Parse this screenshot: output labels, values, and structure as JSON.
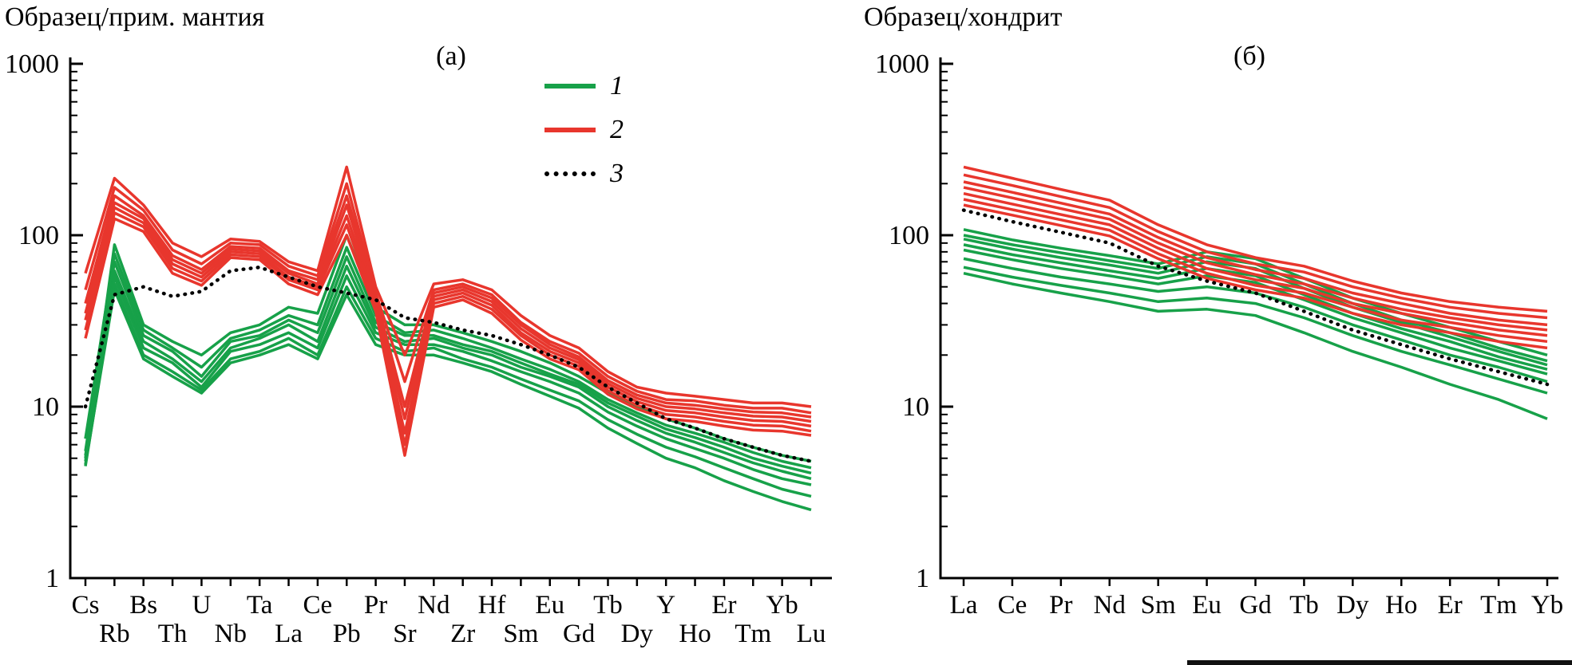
{
  "colors": {
    "series1": "#17a149",
    "series2": "#e8362d",
    "series3": "#000000"
  },
  "chart_data": [
    {
      "id": "panel-a",
      "type": "line",
      "panel_label": "(а)",
      "ylabel_title": "Образец/прим. мантия",
      "y_log": true,
      "ylim": [
        1,
        1000
      ],
      "y_ticks": [
        1,
        10,
        100,
        1000
      ],
      "grid": false,
      "legend_position": "upper-right-inside",
      "categories": [
        "Cs",
        "Rb",
        "Bs",
        "Th",
        "U",
        "Nb",
        "Ta",
        "La",
        "Ce",
        "Pb",
        "Pr",
        "Sr",
        "Nd",
        "Zr",
        "Hf",
        "Sm",
        "Eu",
        "Gd",
        "Tb",
        "Dy",
        "Y",
        "Ho",
        "Er",
        "Tm",
        "Yb",
        "Lu"
      ],
      "legend": [
        {
          "label": "1",
          "color_key": "series1",
          "style": "solid"
        },
        {
          "label": "2",
          "color_key": "series2",
          "style": "solid"
        },
        {
          "label": "3",
          "color_key": "series3",
          "style": "dotted"
        }
      ],
      "series": [
        {
          "name": "1",
          "color_key": "series1",
          "style": "solid",
          "lines": [
            [
              5.0,
              88,
              30,
              24,
              20,
              27,
              30,
              38,
              35,
              100,
              38,
              30,
              30,
              27,
              24,
              21,
              18,
              15,
              12,
              10,
              8.5,
              7.5,
              6.5,
              5.8,
              5.2,
              4.8
            ],
            [
              6.5,
              78,
              28,
              22,
              17,
              25,
              28,
              34,
              30,
              85,
              34,
              27,
              28,
              25,
              22,
              19,
              16.5,
              14,
              11,
              9.2,
              7.8,
              7.0,
              6.2,
              5.4,
              4.8,
              4.4
            ],
            [
              5.5,
              70,
              26,
              21,
              15,
              24,
              26,
              32,
              27,
              75,
              31,
              26,
              26,
              23,
              21,
              18,
              15.5,
              13.5,
              10.5,
              8.8,
              7.4,
              6.6,
              5.8,
              5.0,
              4.5,
              4.1
            ],
            [
              4.8,
              62,
              24,
              19,
              14,
              22,
              25,
              30,
              24,
              66,
              29,
              24,
              25,
              22,
              20,
              17,
              15,
              13,
              10,
              8.3,
              7.0,
              6.2,
              5.4,
              4.7,
              4.2,
              3.8
            ],
            [
              5.2,
              57,
              22,
              18,
              13,
              21,
              23,
              27,
              22,
              58,
              27,
              23,
              23,
              21,
              18.5,
              16,
              14,
              12,
              9.3,
              7.7,
              6.5,
              5.7,
              5.0,
              4.3,
              3.8,
              3.5
            ],
            [
              4.5,
              52,
              20,
              16,
              12.5,
              19,
              21,
              25,
              20,
              50,
              25,
              21,
              22,
              19,
              17,
              14.5,
              12.5,
              10.8,
              8.4,
              6.9,
              5.8,
              5.1,
              4.4,
              3.8,
              3.3,
              3.0
            ],
            [
              4.6,
              48,
              19,
              15,
              12,
              18,
              20,
              23,
              19,
              45,
              23,
              20,
              20,
              18,
              16,
              13.5,
              11.5,
              9.8,
              7.5,
              6.1,
              5.0,
              4.4,
              3.7,
              3.2,
              2.8,
              2.5
            ]
          ]
        },
        {
          "name": "2",
          "color_key": "series2",
          "style": "solid",
          "lines": [
            [
              60,
              215,
              150,
              90,
              75,
              95,
              92,
              70,
              62,
              250,
              50,
              20,
              52,
              55,
              48,
              34,
              26,
              22,
              16,
              13,
              12,
              11.5,
              11,
              10.5,
              10.5,
              10
            ],
            [
              48,
              190,
              140,
              82,
              68,
              90,
              88,
              66,
              58,
              200,
              46,
              14,
              48,
              52,
              45,
              31,
              24,
              20.5,
              15,
              12.3,
              11,
              10.8,
              10.2,
              9.8,
              9.8,
              9.2
            ],
            [
              40,
              170,
              130,
              76,
              63,
              86,
              84,
              62,
              55,
              170,
              44,
              10,
              46,
              50,
              43,
              30,
              23,
              19.5,
              14.2,
              11.7,
              10.5,
              10.2,
              9.7,
              9.3,
              9.2,
              8.7
            ],
            [
              35,
              155,
              125,
              72,
              60,
              83,
              81,
              60,
              52,
              150,
              42,
              8.5,
              44,
              48,
              41,
              28.5,
              22,
              18.8,
              13.6,
              11.2,
              10,
              9.7,
              9.2,
              8.8,
              8.7,
              8.2
            ],
            [
              32,
              145,
              118,
              68,
              57,
              80,
              78,
              57,
              50,
              130,
              40,
              7,
              42,
              46,
              39,
              27,
              21,
              18,
              13,
              10.7,
              9.5,
              9.2,
              8.7,
              8.3,
              8.2,
              7.7
            ],
            [
              28,
              135,
              112,
              64,
              54,
              77,
              75,
              55,
              48,
              115,
              38,
              6,
              40,
              44,
              37,
              26,
              20,
              17.2,
              12.4,
              10.2,
              9.0,
              8.7,
              8.2,
              7.8,
              7.7,
              7.2
            ],
            [
              25,
              125,
              105,
              60,
              51,
              74,
              72,
              52,
              45,
              100,
              36,
              5.2,
              38,
              42,
              35,
              24.5,
              19,
              16.4,
              11.8,
              9.7,
              8.5,
              8.2,
              7.7,
              7.3,
              7.2,
              6.8
            ]
          ]
        },
        {
          "name": "3",
          "color_key": "series3",
          "style": "dotted",
          "lines": [
            [
              10,
              45,
              50,
              44,
              47,
              62,
              65,
              57,
              50,
              46,
              42,
              33,
              31,
              28,
              26,
              23,
              20,
              17,
              13,
              10.5,
              8.5,
              7.5,
              6.5,
              5.8,
              5.2,
              4.8
            ]
          ]
        }
      ]
    },
    {
      "id": "panel-b",
      "type": "line",
      "panel_label": "(б)",
      "ylabel_title": "Образец/хондрит",
      "y_log": true,
      "ylim": [
        1,
        1000
      ],
      "y_ticks": [
        1,
        10,
        100,
        1000
      ],
      "grid": false,
      "categories": [
        "La",
        "Ce",
        "Pr",
        "Nd",
        "Sm",
        "Eu",
        "Gd",
        "Tb",
        "Dy",
        "Ho",
        "Er",
        "Tm",
        "Yb"
      ],
      "series": [
        {
          "name": "1",
          "color_key": "series1",
          "style": "solid",
          "lines": [
            [
              108,
              94,
              84,
              76,
              68,
              80,
              73,
              56,
              43,
              35,
              29,
              24,
              20
            ],
            [
              100,
              88,
              79,
              71,
              64,
              75,
              68,
              52,
              40,
              32,
              27,
              22,
              18.5
            ],
            [
              95,
              83,
              74,
              67,
              60,
              70,
              64,
              49,
              38,
              31,
              25.5,
              21,
              17.5
            ],
            [
              88,
              77,
              69,
              62,
              56,
              64,
              58,
              45,
              35,
              28.5,
              24,
              19.5,
              16.5
            ],
            [
              82,
              72,
              64,
              58,
              52,
              58,
              53,
              42,
              33,
              27,
              22,
              18.5,
              15.5
            ],
            [
              73,
              64,
              57,
              52,
              47,
              50,
              46,
              38,
              30,
              24.5,
              20,
              17,
              14
            ],
            [
              65,
              57,
              51,
              46,
              41,
              43,
              40,
              33,
              26,
              21,
              17.5,
              14.5,
              12
            ],
            [
              60,
              52,
              46,
              41,
              36,
              37,
              34,
              27,
              21,
              17,
              13.5,
              11,
              8.5
            ]
          ]
        },
        {
          "name": "2",
          "color_key": "series2",
          "style": "solid",
          "lines": [
            [
              250,
              215,
              185,
              160,
              115,
              88,
              74,
              66,
              54,
              46,
              41,
              38,
              36
            ],
            [
              225,
              195,
              168,
              145,
              105,
              80,
              68,
              61,
              50,
              43,
              38,
              35,
              33
            ],
            [
              205,
              178,
              154,
              133,
              97,
              74,
              63,
              56,
              46,
              40,
              35,
              32,
              30
            ],
            [
              190,
              165,
              143,
              124,
              90,
              69,
              59,
              52,
              43,
              37,
              33,
              30,
              28
            ],
            [
              175,
              152,
              132,
              115,
              84,
              64,
              55,
              49,
              40,
              35,
              31,
              28,
              26
            ],
            [
              162,
              141,
              123,
              107,
              78,
              60,
              51,
              46,
              38,
              32,
              29,
              26,
              24
            ],
            [
              150,
              131,
              114,
              99,
              73,
              56,
              48,
              43,
              35,
              30,
              27,
              24,
              22
            ]
          ]
        },
        {
          "name": "3",
          "color_key": "series3",
          "style": "dotted",
          "lines": [
            [
              140,
              120,
              104,
              90,
              66,
              54,
              46,
              36,
              28,
              23,
              19,
              16,
              13.5
            ]
          ]
        }
      ]
    }
  ]
}
